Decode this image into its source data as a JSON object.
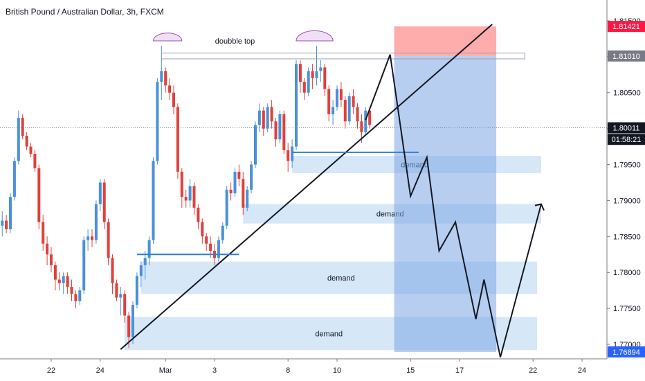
{
  "title": "British Pound / Australian Dollar, 3h, FXCM",
  "chart_data": {
    "type": "candlestick",
    "y_ticks": [
      1.815,
      1.81,
      1.805,
      1.8,
      1.795,
      1.79,
      1.785,
      1.78,
      1.775,
      1.77
    ],
    "y_tick_labels": [
      "1.81500",
      "1.81000",
      "1.80500",
      "1.80000",
      "1.79500",
      "1.79000",
      "1.78500",
      "1.78000",
      "1.77500",
      "1.77000"
    ],
    "x_ticks": [
      {
        "label": "22",
        "i": 12
      },
      {
        "label": "24",
        "i": 24
      },
      {
        "label": "Mar",
        "i": 40
      },
      {
        "label": "3",
        "i": 52
      },
      {
        "label": "8",
        "i": 70
      },
      {
        "label": "10",
        "i": 82
      },
      {
        "label": "15",
        "i": 100
      },
      {
        "label": "17",
        "i": 112
      },
      {
        "label": "22",
        "i": 130
      },
      {
        "label": "24",
        "i": 142
      }
    ],
    "price_labels": [
      {
        "text": "1.81421",
        "value": 1.81421,
        "bg": "#ff1744",
        "fg": "#ffffff"
      },
      {
        "text": "1.81010",
        "value": 1.8101,
        "bg": "#787b86",
        "fg": "#ffffff"
      },
      {
        "text": "1.80011",
        "value": 1.80011,
        "bg": "#131722",
        "fg": "#ffffff"
      },
      {
        "text": "01:58:21",
        "value": 1.7985,
        "bg": "#131722",
        "fg": "#ffffff"
      },
      {
        "text": "1.76894",
        "value": 1.76894,
        "bg": "#2962ff",
        "fg": "#ffffff"
      }
    ],
    "current_price": 1.80011,
    "colors": {
      "up": "#4a90d9",
      "down": "#e0403a",
      "zone": "#cfe3f7",
      "stop": "#ff9e9e",
      "target": "#7ba6e3",
      "trend": "#131722",
      "support": "#2b7fd4"
    },
    "zones": [
      {
        "label": "demand",
        "from_i": 71,
        "to_i": 132,
        "low": 1.7938,
        "high": 1.7962,
        "label_i": 101
      },
      {
        "label": "demand",
        "from_i": 59,
        "to_i": 132,
        "low": 1.7868,
        "high": 1.7895,
        "label_i": 95
      },
      {
        "label": "demand",
        "from_i": 34,
        "to_i": 131,
        "low": 1.777,
        "high": 1.7815,
        "label_i": 83
      },
      {
        "label": "demand",
        "from_i": 30,
        "to_i": 131,
        "low": 1.7692,
        "high": 1.7738,
        "label_i": 80
      }
    ],
    "resistance_box": {
      "from_i": 39,
      "to_i": 128,
      "low": 1.8097,
      "high": 1.8105
    },
    "position": {
      "from_i": 96,
      "to_i": 121,
      "entry": 1.8101,
      "stop": 1.81421,
      "target": 1.76894
    },
    "annotations": [
      {
        "text": "doubble top",
        "i": 57,
        "value": 1.8123
      }
    ],
    "arcs": [
      {
        "i_from": 37,
        "i_to": 44,
        "value": 1.8122
      },
      {
        "i_from": 72,
        "i_to": 81,
        "value": 1.8122
      }
    ],
    "trendline": {
      "x1": 29,
      "y1": 1.7693,
      "x2": 120,
      "y2": 1.8145
    },
    "support_lines": [
      {
        "x1": 33,
        "x2": 58,
        "value": 1.7825
      },
      {
        "x1": 71,
        "x2": 102,
        "value": 1.7967
      }
    ],
    "projection": [
      {
        "i": 89,
        "v": 1.8012
      },
      {
        "i": 95,
        "v": 1.8103
      },
      {
        "i": 100,
        "v": 1.7906
      },
      {
        "i": 104,
        "v": 1.796
      },
      {
        "i": 107,
        "v": 1.783
      },
      {
        "i": 111,
        "v": 1.787
      },
      {
        "i": 116,
        "v": 1.7735
      },
      {
        "i": 118,
        "v": 1.779
      },
      {
        "i": 122,
        "v": 1.7682
      },
      {
        "i": 132,
        "v": 1.7895
      }
    ],
    "candles": [
      [
        1.7865,
        1.7885,
        1.785,
        1.7872
      ],
      [
        1.7872,
        1.788,
        1.7855,
        1.786
      ],
      [
        1.786,
        1.791,
        1.7855,
        1.7905
      ],
      [
        1.7905,
        1.796,
        1.79,
        1.7955
      ],
      [
        1.7955,
        1.8025,
        1.795,
        1.8015
      ],
      [
        1.8015,
        1.802,
        1.7985,
        1.799
      ],
      [
        1.799,
        1.7995,
        1.797,
        1.7975
      ],
      [
        1.7975,
        1.798,
        1.796,
        1.7965
      ],
      [
        1.7965,
        1.797,
        1.794,
        1.7945
      ],
      [
        1.7945,
        1.795,
        1.786,
        1.787
      ],
      [
        1.787,
        1.788,
        1.783,
        1.784
      ],
      [
        1.784,
        1.785,
        1.781,
        1.7825
      ],
      [
        1.7825,
        1.7835,
        1.78,
        1.781
      ],
      [
        1.781,
        1.7815,
        1.7775,
        1.779
      ],
      [
        1.779,
        1.78,
        1.7775,
        1.7785
      ],
      [
        1.7785,
        1.78,
        1.777,
        1.7795
      ],
      [
        1.7795,
        1.78,
        1.777,
        1.778
      ],
      [
        1.778,
        1.779,
        1.776,
        1.777
      ],
      [
        1.777,
        1.7775,
        1.775,
        1.776
      ],
      [
        1.776,
        1.778,
        1.7755,
        1.7775
      ],
      [
        1.7775,
        1.785,
        1.777,
        1.7845
      ],
      [
        1.7845,
        1.786,
        1.783,
        1.785
      ],
      [
        1.785,
        1.786,
        1.7835,
        1.7845
      ],
      [
        1.7845,
        1.79,
        1.784,
        1.7895
      ],
      [
        1.7895,
        1.793,
        1.7885,
        1.7925
      ],
      [
        1.7925,
        1.793,
        1.786,
        1.787
      ],
      [
        1.787,
        1.7875,
        1.781,
        1.782
      ],
      [
        1.782,
        1.7825,
        1.777,
        1.7785
      ],
      [
        1.7785,
        1.779,
        1.776,
        1.7765
      ],
      [
        1.7765,
        1.778,
        1.774,
        1.777
      ],
      [
        1.777,
        1.7775,
        1.773,
        1.774
      ],
      [
        1.774,
        1.7745,
        1.7695,
        1.771
      ],
      [
        1.771,
        1.776,
        1.77,
        1.7755
      ],
      [
        1.7755,
        1.78,
        1.775,
        1.7795
      ],
      [
        1.7795,
        1.7815,
        1.778,
        1.781
      ],
      [
        1.781,
        1.783,
        1.779,
        1.782
      ],
      [
        1.782,
        1.785,
        1.781,
        1.7845
      ],
      [
        1.7845,
        1.796,
        1.784,
        1.7955
      ],
      [
        1.7955,
        1.807,
        1.795,
        1.8065
      ],
      [
        1.8065,
        1.8115,
        1.804,
        1.808
      ],
      [
        1.808,
        1.8085,
        1.805,
        1.806
      ],
      [
        1.806,
        1.807,
        1.804,
        1.805
      ],
      [
        1.805,
        1.806,
        1.802,
        1.803
      ],
      [
        1.803,
        1.8035,
        1.793,
        1.794
      ],
      [
        1.794,
        1.7945,
        1.789,
        1.7905
      ],
      [
        1.7905,
        1.7915,
        1.789,
        1.79
      ],
      [
        1.79,
        1.793,
        1.789,
        1.792
      ],
      [
        1.792,
        1.7925,
        1.788,
        1.789
      ],
      [
        1.789,
        1.7895,
        1.786,
        1.787
      ],
      [
        1.787,
        1.7875,
        1.784,
        1.785
      ],
      [
        1.785,
        1.7855,
        1.783,
        1.784
      ],
      [
        1.784,
        1.785,
        1.782,
        1.783
      ],
      [
        1.783,
        1.784,
        1.781,
        1.782
      ],
      [
        1.782,
        1.785,
        1.7815,
        1.7845
      ],
      [
        1.7845,
        1.787,
        1.784,
        1.7865
      ],
      [
        1.7865,
        1.792,
        1.786,
        1.7915
      ],
      [
        1.7915,
        1.7925,
        1.79,
        1.791
      ],
      [
        1.791,
        1.7945,
        1.7905,
        1.794
      ],
      [
        1.794,
        1.795,
        1.792,
        1.793
      ],
      [
        1.793,
        1.794,
        1.788,
        1.789
      ],
      [
        1.789,
        1.792,
        1.7885,
        1.7915
      ],
      [
        1.7915,
        1.7955,
        1.791,
        1.795
      ],
      [
        1.795,
        1.801,
        1.7945,
        1.8005
      ],
      [
        1.8005,
        1.8035,
        1.7995,
        1.8025
      ],
      [
        1.8025,
        1.803,
        1.799,
        1.8
      ],
      [
        1.8,
        1.8035,
        1.7995,
        1.803
      ],
      [
        1.803,
        1.804,
        1.8,
        1.801
      ],
      [
        1.801,
        1.8015,
        1.7975,
        1.7985
      ],
      [
        1.7985,
        1.8025,
        1.798,
        1.802
      ],
      [
        1.802,
        1.8025,
        1.7965,
        1.797
      ],
      [
        1.797,
        1.798,
        1.794,
        1.7955
      ],
      [
        1.7955,
        1.7985,
        1.7945,
        1.7975
      ],
      [
        1.7975,
        1.8095,
        1.797,
        1.809
      ],
      [
        1.809,
        1.8095,
        1.805,
        1.8065
      ],
      [
        1.8065,
        1.807,
        1.804,
        1.805
      ],
      [
        1.805,
        1.8085,
        1.8045,
        1.808
      ],
      [
        1.808,
        1.809,
        1.8055,
        1.807
      ],
      [
        1.807,
        1.8115,
        1.806,
        1.808
      ],
      [
        1.808,
        1.8095,
        1.8065,
        1.8085
      ],
      [
        1.8085,
        1.809,
        1.8045,
        1.8055
      ],
      [
        1.8055,
        1.806,
        1.801,
        1.802
      ],
      [
        1.802,
        1.804,
        1.8005,
        1.803
      ],
      [
        1.803,
        1.806,
        1.8025,
        1.8055
      ],
      [
        1.8055,
        1.8065,
        1.803,
        1.804
      ],
      [
        1.804,
        1.8045,
        1.8,
        1.801
      ],
      [
        1.801,
        1.805,
        1.8005,
        1.8045
      ],
      [
        1.8045,
        1.8055,
        1.802,
        1.803
      ],
      [
        1.803,
        1.8035,
        1.8,
        1.801
      ],
      [
        1.801,
        1.802,
        1.798,
        1.7995
      ],
      [
        1.7995,
        1.803,
        1.799,
        1.8025
      ],
      [
        1.8025,
        1.803,
        1.8,
        1.8005
      ]
    ]
  }
}
